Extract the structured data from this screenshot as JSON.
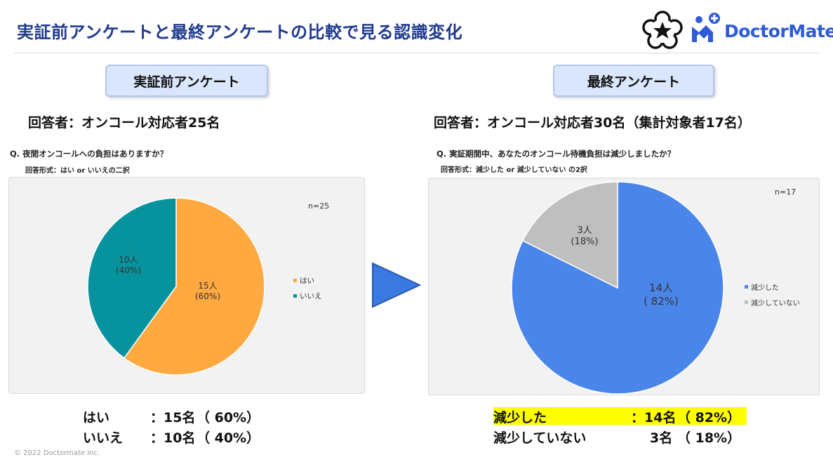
{
  "title": "実証前アンケートと最終アンケートの比較で見る認識変化",
  "logo_text": "DoctorMate",
  "copyright": "© 2022 Doctormate Inc.",
  "left": {
    "pill": "実証前アンケート",
    "respondents": "回答者：オンコール対応者25名",
    "question": "Q.  夜間オンコールへの負担はありますか？",
    "format": "回答形式：はい or いいえの二択",
    "n": "n=25",
    "legend": [
      "はい",
      "いいえ"
    ],
    "summary": [
      {
        "label": "はい",
        "count": "：15名",
        "pct": "（ 60%）"
      },
      {
        "label": "いいえ",
        "count": "：10名",
        "pct": "（ 40%）"
      }
    ]
  },
  "right": {
    "pill": "最終アンケート",
    "respondents": "回答者：オンコール対応者30名（集計対象者17名）",
    "question": "Q.  実証期間中、あなたのオンコール待機負担は減少しましたか？",
    "format": "回答形式：減少した or 減少していない の2択",
    "n": "n=17",
    "legend": [
      "減少した",
      "減少していない"
    ],
    "summary": [
      {
        "label": "減少した",
        "count": "：14名",
        "pct": "（ 82%）"
      },
      {
        "label": "減少していない",
        "count": "3名",
        "pct": "（ 18%）"
      }
    ]
  },
  "chart_data": [
    {
      "type": "pie",
      "slices": [
        {
          "label": "はい",
          "count": 15,
          "percent": 60,
          "value_text": "15人",
          "pct_text": "(60%)",
          "color": "#ffa940"
        },
        {
          "label": "いいえ",
          "count": 10,
          "percent": 40,
          "value_text": "10人",
          "pct_text": "(40%)",
          "color": "#07939e"
        }
      ],
      "legend_placement": "right"
    },
    {
      "type": "pie",
      "slices": [
        {
          "label": "減少した",
          "count": 14,
          "percent": 82,
          "value_text": "14人",
          "pct_text": "( 82%)",
          "color": "#4a86ea"
        },
        {
          "label": "減少していない",
          "count": 3,
          "percent": 18,
          "value_text": "3人",
          "pct_text": "(18%)",
          "color": "#bfbfbf"
        }
      ],
      "legend_placement": "right"
    }
  ]
}
